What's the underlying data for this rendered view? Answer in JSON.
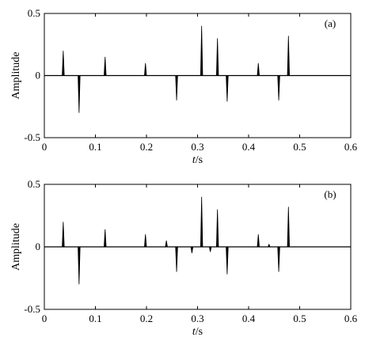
{
  "chart_data": [
    {
      "type": "line",
      "panel_label": "(a)",
      "xlabel_italic": "t",
      "xlabel_unit": "/s",
      "ylabel": "Amplitude",
      "xlim": [
        0,
        0.6
      ],
      "ylim": [
        -0.5,
        0.5
      ],
      "xticks": [
        0,
        0.1,
        0.2,
        0.3,
        0.4,
        0.5,
        0.6
      ],
      "xtick_labels": [
        "0",
        "0.1",
        "0.2",
        "0.3",
        "0.4",
        "0.5",
        "0.6"
      ],
      "yticks": [
        -0.5,
        0,
        0.5
      ],
      "ytick_labels": [
        "-0.5",
        "0",
        "0.5"
      ],
      "grid": false,
      "spikes": [
        {
          "t": 0.037,
          "amp": 0.2
        },
        {
          "t": 0.068,
          "amp": -0.3
        },
        {
          "t": 0.119,
          "amp": 0.15
        },
        {
          "t": 0.198,
          "amp": 0.1
        },
        {
          "t": 0.259,
          "amp": -0.2
        },
        {
          "t": 0.308,
          "amp": 0.4
        },
        {
          "t": 0.339,
          "amp": 0.3
        },
        {
          "t": 0.358,
          "amp": -0.21
        },
        {
          "t": 0.419,
          "amp": 0.1
        },
        {
          "t": 0.459,
          "amp": -0.2
        },
        {
          "t": 0.478,
          "amp": 0.32
        }
      ]
    },
    {
      "type": "line",
      "panel_label": "(b)",
      "xlabel_italic": "t",
      "xlabel_unit": "/s",
      "ylabel": "Amplitude",
      "xlim": [
        0,
        0.6
      ],
      "ylim": [
        -0.5,
        0.5
      ],
      "xticks": [
        0,
        0.1,
        0.2,
        0.3,
        0.4,
        0.5,
        0.6
      ],
      "xtick_labels": [
        "0",
        "0.1",
        "0.2",
        "0.3",
        "0.4",
        "0.5",
        "0.6"
      ],
      "yticks": [
        -0.5,
        0,
        0.5
      ],
      "ytick_labels": [
        "-0.5",
        "0",
        "0.5"
      ],
      "grid": false,
      "spikes": [
        {
          "t": 0.037,
          "amp": 0.2
        },
        {
          "t": 0.068,
          "amp": -0.3
        },
        {
          "t": 0.119,
          "amp": 0.14
        },
        {
          "t": 0.198,
          "amp": 0.1
        },
        {
          "t": 0.239,
          "amp": 0.05
        },
        {
          "t": 0.259,
          "amp": -0.2
        },
        {
          "t": 0.289,
          "amp": -0.05
        },
        {
          "t": 0.308,
          "amp": 0.4
        },
        {
          "t": 0.325,
          "amp": -0.04
        },
        {
          "t": 0.339,
          "amp": 0.3
        },
        {
          "t": 0.358,
          "amp": -0.22
        },
        {
          "t": 0.419,
          "amp": 0.1
        },
        {
          "t": 0.44,
          "amp": 0.02
        },
        {
          "t": 0.459,
          "amp": -0.2
        },
        {
          "t": 0.478,
          "amp": 0.32
        }
      ]
    }
  ]
}
